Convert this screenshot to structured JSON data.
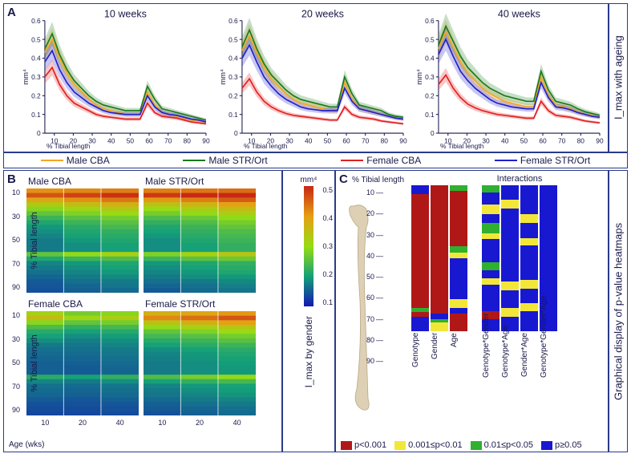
{
  "colors": {
    "border": "#2a3a8a",
    "male_cba": "#f5a623",
    "male_str": "#1a7a1a",
    "female_cba": "#e22020",
    "female_str": "#2020d0",
    "male_cba_fill": "rgba(245,166,35,0.25)",
    "male_str_fill": "rgba(26,122,26,0.25)",
    "female_cba_fill": "rgba(226,32,32,0.25)",
    "female_str_fill": "rgba(32,32,208,0.25)",
    "pval_p001": "#b01818",
    "pval_p01": "#f2e738",
    "pval_p05": "#2fb02f",
    "pval_ns": "#1818d0"
  },
  "panelA": {
    "side_label": "I_max with ageing",
    "ylabel_unit": "mm⁴",
    "xlabel": "% Tibial length",
    "ylim": [
      0,
      0.6
    ],
    "yticks": [
      0,
      0.1,
      0.2,
      0.3,
      0.4,
      0.5,
      0.6
    ],
    "xticks": [
      10,
      20,
      30,
      40,
      50,
      60,
      70,
      80,
      90
    ],
    "charts": [
      {
        "title": "10 weeks",
        "series": {
          "male_cba": [
            0.43,
            0.5,
            0.4,
            0.32,
            0.26,
            0.22,
            0.18,
            0.15,
            0.13,
            0.12,
            0.11,
            0.1,
            0.1,
            0.1,
            0.22,
            0.15,
            0.11,
            0.1,
            0.09,
            0.08,
            0.07,
            0.065,
            0.06
          ],
          "male_str": [
            0.45,
            0.53,
            0.42,
            0.34,
            0.28,
            0.24,
            0.2,
            0.17,
            0.15,
            0.14,
            0.13,
            0.12,
            0.12,
            0.12,
            0.25,
            0.18,
            0.13,
            0.12,
            0.11,
            0.1,
            0.09,
            0.08,
            0.07
          ],
          "female_cba": [
            0.3,
            0.35,
            0.26,
            0.2,
            0.16,
            0.14,
            0.12,
            0.1,
            0.09,
            0.085,
            0.08,
            0.075,
            0.075,
            0.075,
            0.16,
            0.11,
            0.09,
            0.085,
            0.08,
            0.07,
            0.06,
            0.055,
            0.05
          ],
          "female_str": [
            0.38,
            0.44,
            0.34,
            0.27,
            0.22,
            0.19,
            0.16,
            0.14,
            0.12,
            0.11,
            0.105,
            0.1,
            0.1,
            0.1,
            0.2,
            0.14,
            0.11,
            0.1,
            0.095,
            0.085,
            0.075,
            0.07,
            0.06
          ]
        }
      },
      {
        "title": "20 weeks",
        "series": {
          "male_cba": [
            0.44,
            0.52,
            0.43,
            0.35,
            0.29,
            0.25,
            0.21,
            0.18,
            0.16,
            0.15,
            0.14,
            0.13,
            0.12,
            0.12,
            0.27,
            0.18,
            0.13,
            0.12,
            0.11,
            0.1,
            0.09,
            0.08,
            0.075
          ],
          "male_str": [
            0.46,
            0.55,
            0.45,
            0.37,
            0.31,
            0.27,
            0.23,
            0.2,
            0.18,
            0.17,
            0.16,
            0.15,
            0.14,
            0.14,
            0.3,
            0.21,
            0.15,
            0.14,
            0.13,
            0.12,
            0.1,
            0.09,
            0.085
          ],
          "female_cba": [
            0.24,
            0.29,
            0.22,
            0.17,
            0.14,
            0.12,
            0.105,
            0.095,
            0.09,
            0.085,
            0.08,
            0.075,
            0.07,
            0.07,
            0.14,
            0.1,
            0.085,
            0.08,
            0.075,
            0.065,
            0.06,
            0.055,
            0.05
          ],
          "female_str": [
            0.4,
            0.47,
            0.38,
            0.3,
            0.25,
            0.21,
            0.18,
            0.16,
            0.14,
            0.13,
            0.125,
            0.12,
            0.12,
            0.12,
            0.24,
            0.17,
            0.13,
            0.12,
            0.11,
            0.1,
            0.09,
            0.08,
            0.075
          ]
        }
      },
      {
        "title": "40 weeks",
        "series": {
          "male_cba": [
            0.45,
            0.54,
            0.46,
            0.38,
            0.32,
            0.28,
            0.24,
            0.21,
            0.19,
            0.17,
            0.16,
            0.15,
            0.14,
            0.14,
            0.3,
            0.2,
            0.15,
            0.14,
            0.13,
            0.115,
            0.1,
            0.095,
            0.085
          ],
          "male_str": [
            0.47,
            0.57,
            0.49,
            0.41,
            0.35,
            0.31,
            0.27,
            0.24,
            0.22,
            0.2,
            0.19,
            0.18,
            0.17,
            0.17,
            0.33,
            0.23,
            0.17,
            0.16,
            0.15,
            0.13,
            0.115,
            0.105,
            0.095
          ],
          "female_cba": [
            0.26,
            0.31,
            0.24,
            0.19,
            0.155,
            0.135,
            0.12,
            0.11,
            0.1,
            0.095,
            0.09,
            0.085,
            0.08,
            0.08,
            0.17,
            0.12,
            0.095,
            0.09,
            0.085,
            0.075,
            0.065,
            0.06,
            0.055
          ],
          "female_str": [
            0.42,
            0.5,
            0.41,
            0.33,
            0.28,
            0.24,
            0.21,
            0.18,
            0.16,
            0.15,
            0.14,
            0.135,
            0.13,
            0.13,
            0.27,
            0.19,
            0.14,
            0.135,
            0.125,
            0.11,
            0.1,
            0.09,
            0.085
          ]
        }
      }
    ]
  },
  "legendA": [
    {
      "label": "Male CBA",
      "color": "#f5a623"
    },
    {
      "label": "Male STR/Ort",
      "color": "#1a7a1a"
    },
    {
      "label": "Female CBA",
      "color": "#e22020"
    },
    {
      "label": "Female STR/Ort",
      "color": "#2020d0"
    }
  ],
  "panelB": {
    "side_label": "I_max by gender",
    "ylabel": "% Tibial length",
    "xlabel": "Age (wks)",
    "xticks": [
      "10",
      "20",
      "40"
    ],
    "yticks": [
      "10",
      "30",
      "50",
      "70",
      "90"
    ],
    "cb_title": "mm⁴",
    "cb_ticks": [
      "0.5",
      "0.4",
      "0.3",
      "0.2",
      "0.1"
    ],
    "blocks": [
      {
        "title": "Male CBA",
        "grid": "m_cba"
      },
      {
        "title": "Male STR/Ort",
        "grid": "m_str"
      },
      {
        "title": "Female CBA",
        "grid": "f_cba"
      },
      {
        "title": "Female STR/Ort",
        "grid": "f_str"
      }
    ]
  },
  "panelC": {
    "side_label": "Graphical display of p-value heatmaps",
    "tibial_label": "% Tibial length",
    "ticks": [
      "10",
      "20",
      "30",
      "40",
      "50",
      "60",
      "70",
      "80",
      "90"
    ],
    "group1_title": "",
    "group2_title": "Interactions",
    "group1": [
      {
        "label": "Genotype",
        "segs": [
          [
            "ns",
            0.06
          ],
          [
            "p001",
            0.78
          ],
          [
            "p05",
            0.03
          ],
          [
            "p001",
            0.03
          ],
          [
            "ns",
            0.1
          ]
        ]
      },
      {
        "label": "Gender",
        "segs": [
          [
            "p001",
            0.88
          ],
          [
            "ns",
            0.04
          ],
          [
            "p05",
            0.02
          ],
          [
            "p01",
            0.06
          ]
        ]
      },
      {
        "label": "Age",
        "segs": [
          [
            "p05",
            0.04
          ],
          [
            "p001",
            0.38
          ],
          [
            "p05",
            0.04
          ],
          [
            "p01",
            0.04
          ],
          [
            "ns",
            0.28
          ],
          [
            "p01",
            0.06
          ],
          [
            "ns",
            0.04
          ],
          [
            "p001",
            0.12
          ]
        ]
      }
    ],
    "group2": [
      {
        "label": "Genotype*Gender",
        "segs": [
          [
            "p05",
            0.05
          ],
          [
            "ns",
            0.08
          ],
          [
            "p01",
            0.07
          ],
          [
            "ns",
            0.06
          ],
          [
            "p05",
            0.07
          ],
          [
            "p01",
            0.04
          ],
          [
            "ns",
            0.16
          ],
          [
            "p05",
            0.05
          ],
          [
            "ns",
            0.06
          ],
          [
            "p01",
            0.04
          ],
          [
            "ns",
            0.18
          ],
          [
            "p001",
            0.06
          ],
          [
            "ns",
            0.08
          ]
        ]
      },
      {
        "label": "Genotype*Age",
        "segs": [
          [
            "ns",
            0.1
          ],
          [
            "p01",
            0.06
          ],
          [
            "ns",
            0.5
          ],
          [
            "p01",
            0.06
          ],
          [
            "ns",
            0.12
          ],
          [
            "p01",
            0.06
          ],
          [
            "ns",
            0.1
          ]
        ]
      },
      {
        "label": "Gender*Age",
        "segs": [
          [
            "ns",
            0.2
          ],
          [
            "p01",
            0.06
          ],
          [
            "ns",
            0.1
          ],
          [
            "p01",
            0.05
          ],
          [
            "ns",
            0.24
          ],
          [
            "p01",
            0.06
          ],
          [
            "ns",
            0.1
          ],
          [
            "p01",
            0.05
          ],
          [
            "ns",
            0.14
          ]
        ]
      },
      {
        "label": "Genotype*Gender*Age",
        "segs": [
          [
            "ns",
            1.0
          ]
        ]
      }
    ]
  },
  "pvalLegend": [
    {
      "label": "p<0.001",
      "key": "p001"
    },
    {
      "label": "0.001≤p<0.01",
      "key": "p01"
    },
    {
      "label": "0.01≤p<0.05",
      "key": "p05"
    },
    {
      "label": "p≥0.05",
      "key": "ns"
    }
  ]
}
